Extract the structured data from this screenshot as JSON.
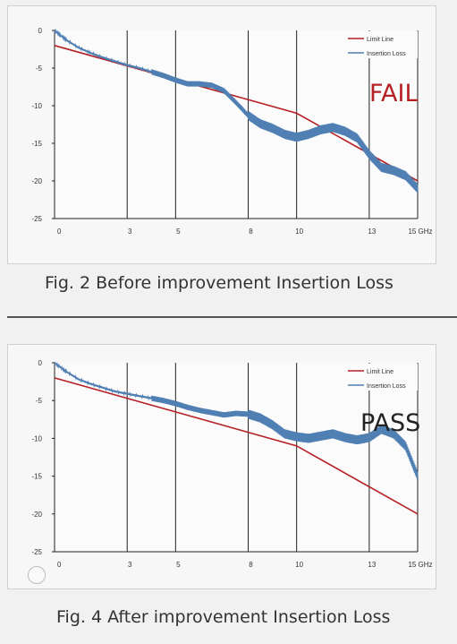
{
  "figures": [
    {
      "caption": "Fig. 2 Before improvement  Insertion Loss",
      "status": "FAIL",
      "status_color": "#b52025"
    },
    {
      "caption": "Fig. 4 After improvement Insertion Loss",
      "status": "PASS",
      "status_color": "#222222"
    }
  ],
  "chart_data": [
    {
      "type": "line",
      "x_ticks": [
        "0",
        "3",
        "5",
        "8",
        "10",
        "13",
        "15 GHz"
      ],
      "y_ticks": [
        "0",
        "-5",
        "-10",
        "-15",
        "-20",
        "-25"
      ],
      "xlim": [
        0,
        15
      ],
      "ylim": [
        -25,
        0
      ],
      "grid": "vertical",
      "legend_position": "top-right",
      "series": [
        {
          "name": "Limit Line",
          "color": "#b52025",
          "x": [
            0,
            10,
            15
          ],
          "y": [
            -2,
            -11,
            -20
          ]
        },
        {
          "name": "Insertion Loss",
          "color": "#4f7fb3",
          "x": [
            0,
            0.5,
            1,
            1.5,
            2,
            2.5,
            3,
            3.5,
            4,
            4.5,
            5,
            5.5,
            6,
            6.5,
            7,
            7.5,
            8,
            8.5,
            9,
            9.5,
            10,
            10.5,
            11,
            11.5,
            12,
            12.5,
            13,
            13.5,
            14,
            14.5,
            15
          ],
          "y": [
            0,
            -1.3,
            -2.3,
            -3.0,
            -3.6,
            -4.1,
            -4.6,
            -5.0,
            -5.5,
            -6.0,
            -6.6,
            -7.1,
            -7.1,
            -7.3,
            -8.0,
            -9.6,
            -11.3,
            -12.4,
            -13.0,
            -13.8,
            -14.2,
            -13.8,
            -13.2,
            -12.9,
            -13.4,
            -14.3,
            -16.5,
            -18.2,
            -18.6,
            -19.3,
            -21.0
          ]
        }
      ]
    },
    {
      "type": "line",
      "x_ticks": [
        "0",
        "3",
        "5",
        "8",
        "10",
        "13",
        "15 GHz"
      ],
      "y_ticks": [
        "0",
        "-5",
        "-10",
        "-15",
        "-20",
        "-25"
      ],
      "xlim": [
        0,
        15
      ],
      "ylim": [
        -25,
        0
      ],
      "grid": "vertical",
      "legend_position": "top-right",
      "series": [
        {
          "name": "Limit Line",
          "color": "#b52025",
          "x": [
            0,
            10,
            15
          ],
          "y": [
            -2,
            -11,
            -20
          ]
        },
        {
          "name": "Insertion Loss",
          "color": "#4f7fb3",
          "x": [
            0,
            0.5,
            1,
            1.5,
            2,
            2.5,
            3,
            3.5,
            4,
            4.5,
            5,
            5.5,
            6,
            6.5,
            7,
            7.5,
            8,
            8.5,
            9,
            9.5,
            10,
            10.5,
            11,
            11.5,
            12,
            12.5,
            13,
            13.5,
            14,
            14.5,
            15
          ],
          "y": [
            0,
            -1.2,
            -2.2,
            -2.8,
            -3.3,
            -3.8,
            -4.1,
            -4.4,
            -4.7,
            -5.0,
            -5.4,
            -5.9,
            -6.3,
            -6.6,
            -6.9,
            -6.7,
            -6.8,
            -7.3,
            -8.2,
            -9.4,
            -9.8,
            -10.0,
            -9.7,
            -9.4,
            -9.9,
            -10.2,
            -9.9,
            -8.8,
            -9.4,
            -11.0,
            -15.0
          ]
        }
      ]
    }
  ]
}
